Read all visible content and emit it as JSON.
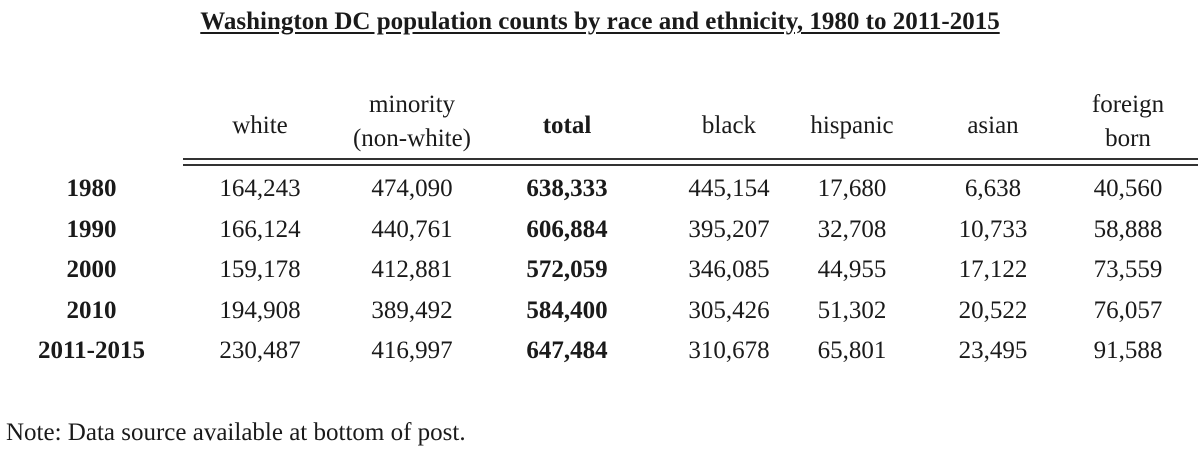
{
  "title": "Washington DC population counts by race and ethnicity, 1980 to 2011-2015",
  "columns": [
    {
      "line1": "white",
      "line2": ""
    },
    {
      "line1": "minority",
      "line2": "(non-white)"
    },
    {
      "line1": "total",
      "line2": ""
    },
    {
      "line1": "black",
      "line2": ""
    },
    {
      "line1": "hispanic",
      "line2": ""
    },
    {
      "line1": "asian",
      "line2": ""
    },
    {
      "line1": "foreign",
      "line2": "born"
    }
  ],
  "rows": [
    {
      "label": "1980",
      "values": [
        "164,243",
        "474,090",
        "638,333",
        "445,154",
        "17,680",
        "6,638",
        "40,560"
      ]
    },
    {
      "label": "1990",
      "values": [
        "166,124",
        "440,761",
        "606,884",
        "395,207",
        "32,708",
        "10,733",
        "58,888"
      ]
    },
    {
      "label": "2000",
      "values": [
        "159,178",
        "412,881",
        "572,059",
        "346,085",
        "44,955",
        "17,122",
        "73,559"
      ]
    },
    {
      "label": "2010",
      "values": [
        "194,908",
        "389,492",
        "584,400",
        "305,426",
        "51,302",
        "20,522",
        "76,057"
      ]
    },
    {
      "label": "2011-2015",
      "values": [
        "230,487",
        "416,997",
        "647,484",
        "310,678",
        "65,801",
        "23,495",
        "91,588"
      ]
    }
  ],
  "note": "Note: Data source available at bottom of post."
}
